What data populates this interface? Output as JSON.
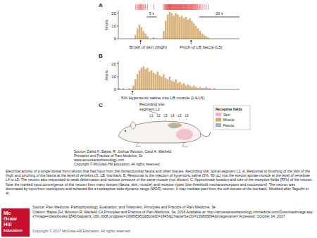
{
  "chart_data": [
    {
      "type": "histogram",
      "panel_label": "A",
      "ylabel": "Imp/s",
      "bins": [
        0,
        1,
        2,
        3,
        4,
        5,
        6,
        7,
        8,
        9,
        10,
        11,
        12,
        13,
        14,
        15,
        16,
        17,
        18,
        19,
        20,
        21,
        22,
        23,
        24,
        25,
        26,
        27,
        28,
        29,
        30,
        31,
        32,
        33,
        34,
        35,
        36,
        37,
        38,
        39,
        40,
        41,
        42,
        43,
        44,
        45,
        46,
        47,
        48,
        49,
        50,
        51,
        52,
        53,
        54,
        55,
        56,
        57,
        58,
        59,
        60
      ],
      "counts": [
        0,
        0,
        0,
        0,
        0,
        0,
        0,
        0,
        3,
        8,
        11,
        9,
        6,
        4,
        2,
        0,
        0,
        1,
        0,
        0,
        0,
        0,
        6,
        14,
        19,
        21,
        20,
        18,
        20,
        19,
        17,
        18,
        16,
        17,
        15,
        16,
        14,
        12,
        10,
        8,
        6,
        4,
        3,
        2,
        1,
        0,
        0,
        0,
        0,
        0,
        0,
        0,
        0,
        0,
        0,
        0,
        0,
        0,
        0,
        0
      ],
      "color": "#d9b27a",
      "xlim": [
        0,
        60
      ],
      "ylim": [
        0,
        22
      ],
      "yticks": [
        0,
        10,
        20
      ],
      "tick_labels": "y",
      "scale_bars": [
        {
          "value": 5,
          "label": "5 s"
        },
        {
          "value": 20,
          "label": "20 s"
        }
      ],
      "annotations": [
        {
          "text": "Brush of skin (thigh)",
          "x": 11
        },
        {
          "text": "Pinch of LB fascia (L5)",
          "x": 36
        }
      ]
    },
    {
      "type": "histogram",
      "panel_label": "B",
      "ylabel": "Imp/s",
      "bins": [
        0,
        1,
        2,
        3,
        4,
        5,
        6,
        7,
        8,
        9,
        10,
        11,
        12,
        13,
        14,
        15,
        16,
        17,
        18,
        19,
        20,
        21,
        22,
        23,
        24,
        25,
        26,
        27,
        28,
        29,
        30,
        31,
        32,
        33,
        34,
        35,
        36,
        37,
        38,
        39,
        40,
        41,
        42,
        43,
        44,
        45,
        46,
        47,
        48,
        49,
        50,
        51,
        52,
        53,
        54,
        55,
        56,
        57,
        58,
        59,
        60
      ],
      "counts": [
        1,
        0,
        1,
        0,
        0,
        1,
        0,
        3,
        8,
        12,
        15,
        17,
        18,
        16,
        17,
        14,
        15,
        13,
        12,
        14,
        11,
        10,
        12,
        9,
        8,
        10,
        7,
        6,
        8,
        5,
        6,
        4,
        5,
        3,
        4,
        3,
        2,
        3,
        2,
        1,
        2,
        1,
        1,
        2,
        1,
        1,
        0,
        1,
        0,
        0,
        0,
        0,
        0,
        0,
        0,
        0,
        0,
        0,
        0,
        0
      ],
      "color": "#d9b27a",
      "xlim": [
        0,
        60
      ],
      "ylim": [
        0,
        22
      ],
      "yticks": [
        0,
        10,
        20
      ],
      "tick_labels": "y",
      "annotations": [
        {
          "text": "5% Hypertonic saline into LB muscle (L4-L5)",
          "x": 7
        }
      ]
    }
  ],
  "figure": {
    "diagram": {
      "panel_label": "C",
      "recording_site": "Recording site:",
      "recording_segment": "segment L2",
      "segments": [
        "L1",
        "L2",
        "L3",
        "L4",
        "L5",
        "L6"
      ],
      "legend_title": "Receptive fields",
      "legend": [
        {
          "label": "Skin",
          "color": "#f2b6c6"
        },
        {
          "label": "Muscle",
          "color": "#d9a55f"
        },
        {
          "label": "Fascia",
          "color": "#8fb3d9"
        }
      ]
    },
    "source_lines": [
      "Source: Zahid H. Bajwa, R. Joshua Wootton, Carol A. Warfield:",
      "Principles and Practice of Pain Medicine, 3e",
      "www.accessanesthesiology.com",
      "Copyright © McGraw-Hill Education. All rights reserved."
    ],
    "caption": "Electrical activity of a single dorsal horn neuron that had input from the thoracolumbar fascia and other tissues. Recording site: spinal segment L2. A, Response to brushing of the skin of the thigh and pinching of the fascia at the level of vertebra L5. LB, low back. B, Response to the injection of hypertonic saline (5%, 50 µL) into the erector spinae muscle at the level of vertebrae L4 to L5. The neuron also responded to weak deformation and noxious pressure of the same muscle (not shown). C, Approximate location and size of the receptive fields (RFs) of the neuron. Note the marked input convergence of this neuron from many tissues (fascia, skin, muscle) and receptor types (low-threshold mechanoreceptors and nociceptors). The neuron was dominated by input from nociceptors and behaved like a nociceptive wide-dynamic range (WDR) neuron. It may mediate pain from the soft tissues of the low back. Modified after Taguchi et al.",
    "source_book": "Source: Pain Medicine: Pathophysiology, Evaluation, and Treatment, Principles and Practice of Pain Medicine, 3e",
    "citation": "Citation: Bajwa ZH, Wootton R, Warfield CA Principles and Practice of Pain Medicine, 3e; 2016 Available at: http://accessanesthesiology.mhmedical.com/Downloadimage.aspx?image=/data/books/1845/bajpain3_c60_f008.png&sec=136895951&BookID=1845&ChapterSecID=136895894&imagename= Accessed: October 14, 2017",
    "copyright": "Copyright © 2017 McGraw-Hill Education. All rights reserved",
    "logo": [
      "Mc",
      "Graw",
      "Hill",
      "Education"
    ]
  }
}
